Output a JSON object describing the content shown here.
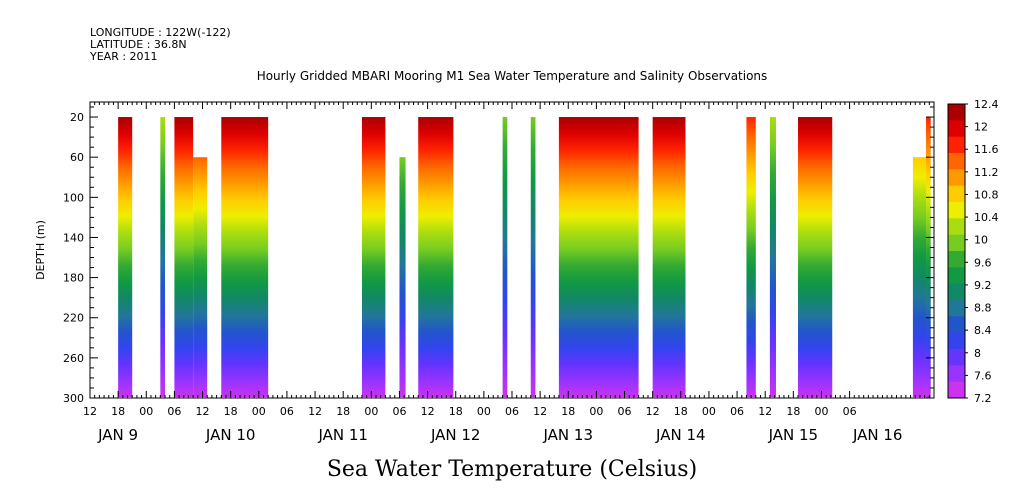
{
  "header": {
    "longitude": "LONGITUDE : 122W(-122)",
    "latitude": "LATITUDE : 36.8N",
    "year": "YEAR : 2011"
  },
  "chart_data": {
    "type": "heatmap",
    "title": "Hourly Gridded MBARI Mooring M1 Sea Water Temperature and Salinity Observations",
    "xlabel": "Sea Water Temperature (Celsius)",
    "ylabel": "DEPTH (m)",
    "x_range_hours": [
      0,
      180
    ],
    "ylim": [
      300,
      5
    ],
    "y_ticks": [
      20,
      60,
      100,
      140,
      180,
      220,
      260,
      300
    ],
    "x_hour_ticks": [
      "12",
      "18",
      "00",
      "06",
      "12",
      "18",
      "00",
      "06",
      "12",
      "18",
      "00",
      "06",
      "12",
      "18",
      "00",
      "06",
      "12",
      "18",
      "00",
      "06",
      "12",
      "18",
      "00",
      "06",
      "12",
      "18",
      "00",
      "06"
    ],
    "x_hour_tick_positions": [
      0,
      6,
      12,
      18,
      24,
      30,
      36,
      42,
      48,
      54,
      60,
      66,
      72,
      78,
      84,
      90,
      96,
      102,
      108,
      114,
      120,
      126,
      132,
      138,
      144,
      150,
      156,
      162
    ],
    "day_labels": [
      "JAN  9",
      "JAN 10",
      "JAN 11",
      "JAN 12",
      "JAN 13",
      "JAN 14",
      "JAN 15",
      "JAN 16"
    ],
    "day_label_positions": [
      6,
      30,
      54,
      78,
      102,
      126,
      150,
      168
    ],
    "colorbar": {
      "levels": [
        7.2,
        7.6,
        8,
        8.4,
        8.8,
        9.2,
        9.6,
        10,
        10.4,
        10.8,
        11.2,
        11.6,
        12,
        12.4
      ],
      "labels": [
        "7.2",
        "7.6",
        "8",
        "8.4",
        "8.8",
        "9.2",
        "9.6",
        "10",
        "10.4",
        "10.8",
        "11.2",
        "11.6",
        "12",
        "12.4"
      ],
      "colors": [
        "#cc33ee",
        "#9933ff",
        "#6633ff",
        "#3344ee",
        "#2255cc",
        "#227799",
        "#118866",
        "#119944",
        "#33aa33",
        "#77cc22",
        "#aadd11",
        "#eeee00",
        "#ffcc00",
        "#ff9900",
        "#ff6600",
        "#ff2200",
        "#dd0000",
        "#aa0000"
      ]
    },
    "data_segments": [
      {
        "start": 6.0,
        "end": 9.0,
        "top": 20,
        "warm": 1.0
      },
      {
        "start": 15.0,
        "end": 16.0,
        "top": 20,
        "warm": 0.6
      },
      {
        "start": 18.0,
        "end": 22.0,
        "top": 20,
        "warm": 1.0
      },
      {
        "start": 22.0,
        "end": 25.0,
        "top": 60,
        "warm": 0.8
      },
      {
        "start": 28.0,
        "end": 38.0,
        "top": 20,
        "warm": 1.0
      },
      {
        "start": 58.0,
        "end": 63.0,
        "top": 20,
        "warm": 1.0
      },
      {
        "start": 66.0,
        "end": 67.3,
        "top": 60,
        "warm": 0.5
      },
      {
        "start": 70.0,
        "end": 77.5,
        "top": 20,
        "warm": 1.0
      },
      {
        "start": 88.0,
        "end": 89.0,
        "top": 20,
        "warm": 0.5
      },
      {
        "start": 94.0,
        "end": 95.0,
        "top": 20,
        "warm": 0.5
      },
      {
        "start": 100.0,
        "end": 117.0,
        "top": 20,
        "warm": 1.0
      },
      {
        "start": 120.0,
        "end": 127.0,
        "top": 20,
        "warm": 1.0
      },
      {
        "start": 140.0,
        "end": 142.0,
        "top": 20,
        "warm": 0.9
      },
      {
        "start": 145.0,
        "end": 146.3,
        "top": 20,
        "warm": 0.6
      },
      {
        "start": 151.0,
        "end": 158.3,
        "top": 20,
        "warm": 1.0
      },
      {
        "start": 175.5,
        "end": 178.3,
        "top": 60,
        "warm": 0.7
      },
      {
        "start": 178.3,
        "end": 179.3,
        "top": 20,
        "warm": 0.9
      }
    ]
  }
}
